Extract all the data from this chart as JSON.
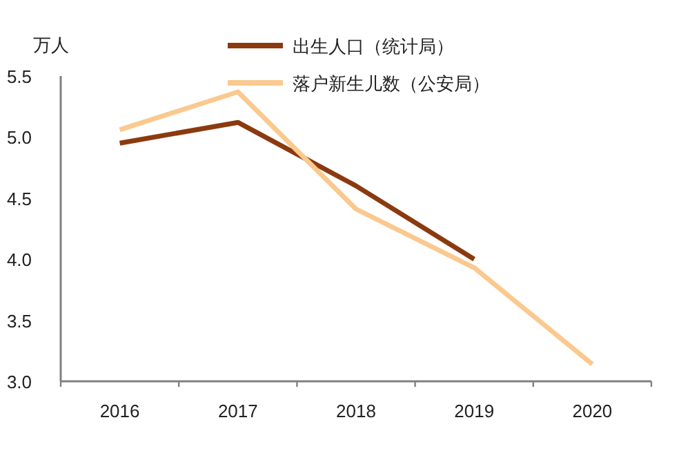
{
  "chart_data": {
    "type": "line",
    "ylabel": "万人",
    "categories": [
      "2016",
      "2017",
      "2018",
      "2019",
      "2020"
    ],
    "ylim": [
      3.0,
      5.5
    ],
    "yticks": [
      {
        "value": 3.0,
        "label": "3.0"
      },
      {
        "value": 3.5,
        "label": "3.5"
      },
      {
        "value": 4.0,
        "label": "4.0"
      },
      {
        "value": 4.5,
        "label": "4.5"
      },
      {
        "value": 5.0,
        "label": "5.0"
      },
      {
        "value": 5.5,
        "label": "5.5"
      }
    ],
    "grid": false,
    "legend": "top",
    "marker": "none",
    "line_style": "solid",
    "series": [
      {
        "name": "出生人口（统计局）",
        "color": "#8b3a0f",
        "values": [
          4.95,
          5.12,
          4.6,
          4.0,
          null
        ]
      },
      {
        "name": "落户新生儿数（公安局）",
        "color": "#fac98f",
        "values": [
          5.06,
          5.37,
          4.41,
          3.93,
          3.14
        ]
      }
    ]
  }
}
